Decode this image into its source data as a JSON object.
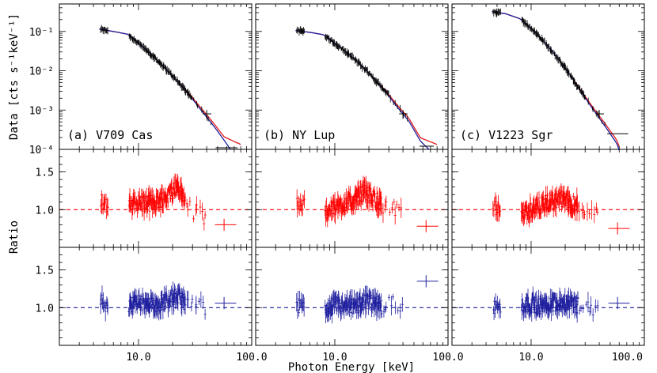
{
  "chart_data": {
    "type": "scatter",
    "layout": "3 columns x 3 rows, shared x axis",
    "xlabel": "Photon Energy [keV]",
    "xscale": "log",
    "xlim": [
      2,
      100
    ],
    "x_tick_labels": [
      "10.0",
      "100.0"
    ],
    "colors": {
      "data": "#000000",
      "model_red": "#e41a1c",
      "model_blue": "#1f1f9f",
      "ratio_red": "#ff0000",
      "ratio_blue": "#1f1f9f"
    },
    "rows": [
      {
        "id": "data",
        "ylabel": "Data [cts s⁻¹keV⁻¹]",
        "yscale": "log",
        "ylim": [
          0.0001,
          0.5
        ],
        "y_tick_labels": [
          "10⁻¹",
          "10⁻²",
          "10⁻³",
          "10⁻⁴"
        ]
      },
      {
        "id": "ratio_red",
        "ylabel": "Ratio",
        "yscale": "linear",
        "ylim": [
          0.5,
          1.8
        ],
        "y_tick_labels": [
          "1.5",
          "1.0"
        ],
        "reference_line": 1.0
      },
      {
        "id": "ratio_blue",
        "ylabel": "",
        "yscale": "linear",
        "ylim": [
          0.5,
          1.8
        ],
        "y_tick_labels": [
          "1.5",
          "1.0"
        ],
        "reference_line": 1.0
      }
    ],
    "panels": [
      {
        "label": "(a) V709 Cas",
        "spectrum": {
          "x": [
            4.5,
            6,
            8,
            10,
            13,
            17,
            22,
            28,
            35,
            45,
            57,
            75
          ],
          "y": [
            0.115,
            0.1,
            0.085,
            0.05,
            0.026,
            0.012,
            0.0055,
            0.0025,
            0.0011,
            0.00045,
            0.00018,
            0.00011
          ]
        },
        "model_red_end": [
          80,
          0.00011
        ],
        "model_blue_end": [
          65,
          0.000105
        ],
        "final_point": {
          "x": 57,
          "xerr": [
            48,
            75
          ],
          "y": 0.00011
        },
        "ratio_red": {
          "x": [
            4.6,
            5.2,
            8.5,
            10,
            12,
            15,
            18,
            22,
            27,
            33,
            57
          ],
          "y": [
            1.15,
            1.05,
            1.05,
            1.1,
            1.08,
            1.12,
            1.18,
            1.32,
            1.05,
            0.95,
            0.8
          ]
        },
        "ratio_blue": {
          "x": [
            4.6,
            5.2,
            8.5,
            10,
            12,
            15,
            18,
            22,
            27,
            33,
            57
          ],
          "y": [
            1.1,
            1.0,
            1.05,
            1.08,
            1.02,
            1.05,
            1.1,
            1.15,
            1.05,
            1.0,
            1.06
          ]
        }
      },
      {
        "label": "(b) NY Lup",
        "spectrum": {
          "x": [
            4.5,
            6,
            8,
            10,
            13,
            17,
            22,
            28,
            35,
            45,
            57,
            70
          ],
          "y": [
            0.105,
            0.095,
            0.082,
            0.05,
            0.028,
            0.014,
            0.0065,
            0.003,
            0.0013,
            0.00055,
            0.00017,
            0.00011
          ]
        },
        "model_red_end": [
          80,
          0.00011
        ],
        "model_blue_end": [
          68,
          0.000105
        ],
        "final_point": {
          "x": 64,
          "xerr": [
            56,
            75
          ],
          "y": 0.00012
        },
        "ratio_red": {
          "x": [
            4.6,
            5.2,
            8.5,
            10,
            12,
            15,
            18,
            22,
            27,
            33,
            46,
            64
          ],
          "y": [
            1.1,
            1.05,
            0.98,
            1.02,
            1.08,
            1.12,
            1.25,
            1.15,
            1.05,
            1.0,
            0.83,
            0.78
          ]
        },
        "ratio_blue": {
          "x": [
            4.6,
            5.2,
            8.5,
            10,
            12,
            15,
            18,
            22,
            27,
            33,
            46,
            64
          ],
          "y": [
            1.02,
            1.0,
            0.98,
            1.05,
            1.0,
            1.02,
            1.08,
            1.05,
            1.02,
            1.05,
            1.08,
            1.35
          ]
        }
      },
      {
        "label": "(c) V1223 Sgr",
        "spectrum": {
          "x": [
            4.5,
            6,
            8,
            10,
            13,
            17,
            22,
            28,
            35,
            45,
            57,
            70
          ],
          "y": [
            0.32,
            0.28,
            0.21,
            0.12,
            0.055,
            0.022,
            0.008,
            0.0028,
            0.0011,
            0.0004,
            0.00015,
            0.00011
          ]
        },
        "model_red_end": [
          60,
          0.0001
        ],
        "model_blue_end": [
          60,
          0.0001
        ],
        "final_point": {
          "x": 58,
          "xerr": [
            47,
            72
          ],
          "y": 0.00025
        },
        "ratio_red": {
          "x": [
            4.6,
            5.2,
            8.5,
            10,
            12,
            15,
            18,
            22,
            27,
            33,
            46,
            58
          ],
          "y": [
            1.05,
            1.0,
            0.95,
            1.0,
            1.05,
            1.1,
            1.15,
            1.1,
            1.05,
            0.98,
            0.9,
            0.75
          ]
        },
        "ratio_blue": {
          "x": [
            4.6,
            5.2,
            8.5,
            10,
            12,
            15,
            18,
            22,
            27,
            33,
            46,
            58
          ],
          "y": [
            1.0,
            1.0,
            1.02,
            1.05,
            1.02,
            1.05,
            1.08,
            1.05,
            1.02,
            1.0,
            1.05,
            1.06
          ]
        }
      }
    ]
  }
}
